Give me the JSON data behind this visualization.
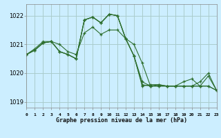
{
  "title": "Graphe pression niveau de la mer (hPa)",
  "background_color": "#cceeff",
  "grid_color": "#aacccc",
  "line_color": "#2d6e2d",
  "xlim": [
    0,
    23
  ],
  "ylim": [
    1018.8,
    1022.4
  ],
  "yticks": [
    1019,
    1020,
    1021,
    1022
  ],
  "xtick_labels": [
    "0",
    "1",
    "2",
    "3",
    "4",
    "5",
    "6",
    "7",
    "8",
    "9",
    "10",
    "11",
    "12",
    "13",
    "14",
    "15",
    "16",
    "17",
    "18",
    "19",
    "20",
    "21",
    "22",
    "23"
  ],
  "series": [
    [
      1020.65,
      1020.8,
      1021.05,
      1021.1,
      1020.75,
      1020.65,
      1020.5,
      1021.85,
      1021.95,
      1021.75,
      1022.05,
      1022.0,
      1021.2,
      1020.6,
      1019.55,
      1019.6,
      1019.6,
      1019.55,
      1019.55,
      1019.55,
      1019.55,
      1019.55,
      1019.55,
      1019.4
    ],
    [
      1020.65,
      1020.8,
      1021.05,
      1021.1,
      1020.75,
      1020.65,
      1020.5,
      1021.85,
      1021.95,
      1021.75,
      1022.05,
      1022.0,
      1021.2,
      1020.6,
      1019.7,
      1019.55,
      1019.6,
      1019.55,
      1019.55,
      1019.7,
      1019.8,
      1019.55,
      1019.9,
      1019.4
    ],
    [
      1020.65,
      1020.8,
      1021.05,
      1021.1,
      1020.75,
      1020.65,
      1020.5,
      1021.85,
      1021.95,
      1021.75,
      1022.05,
      1022.0,
      1021.2,
      1020.6,
      1019.6,
      1019.55,
      1019.55,
      1019.55,
      1019.55,
      1019.55,
      1019.55,
      1019.55,
      1019.55,
      1019.4
    ],
    [
      1020.65,
      1020.85,
      1021.1,
      1021.1,
      1021.0,
      1020.75,
      1020.65,
      1021.4,
      1021.6,
      1021.35,
      1021.5,
      1021.5,
      1021.2,
      1021.0,
      1020.35,
      1019.55,
      1019.55,
      1019.55,
      1019.55,
      1019.55,
      1019.55,
      1019.7,
      1020.0,
      1019.4
    ]
  ]
}
